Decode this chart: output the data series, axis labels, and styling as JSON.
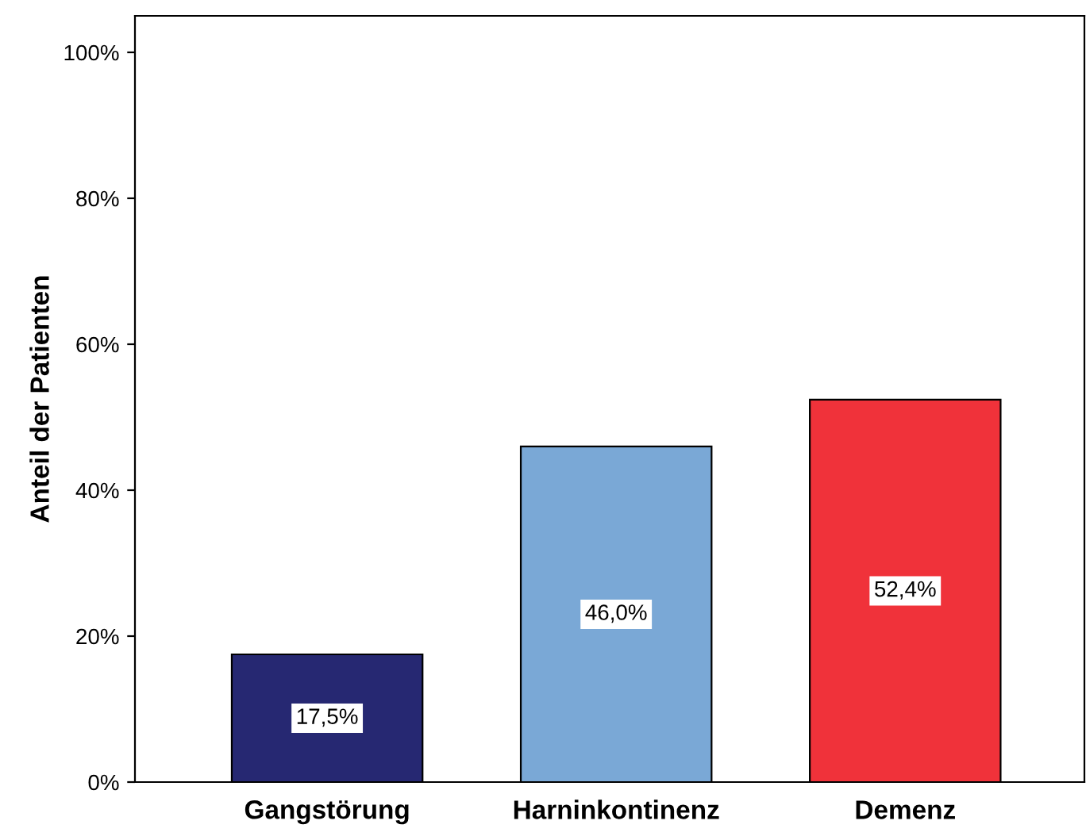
{
  "chart_data": {
    "type": "bar",
    "ylabel": "Anteil der Patienten",
    "categories": [
      "Gangstörung",
      "Harninkontinenz",
      "Demenz"
    ],
    "values": [
      17.5,
      46.0,
      52.4
    ],
    "colors": [
      "#262872",
      "#7aa8d6",
      "#f0323a"
    ],
    "value_labels": [
      "17,5%",
      "46,0%",
      "52,4%"
    ],
    "ylim": [
      0,
      105
    ],
    "yticks": [
      {
        "value": 0,
        "label": "0%"
      },
      {
        "value": 20,
        "label": "20%"
      },
      {
        "value": 40,
        "label": "40%"
      },
      {
        "value": 60,
        "label": "60%"
      },
      {
        "value": 80,
        "label": "80%"
      },
      {
        "value": 100,
        "label": "100%"
      }
    ],
    "grid": false,
    "legend": false
  }
}
